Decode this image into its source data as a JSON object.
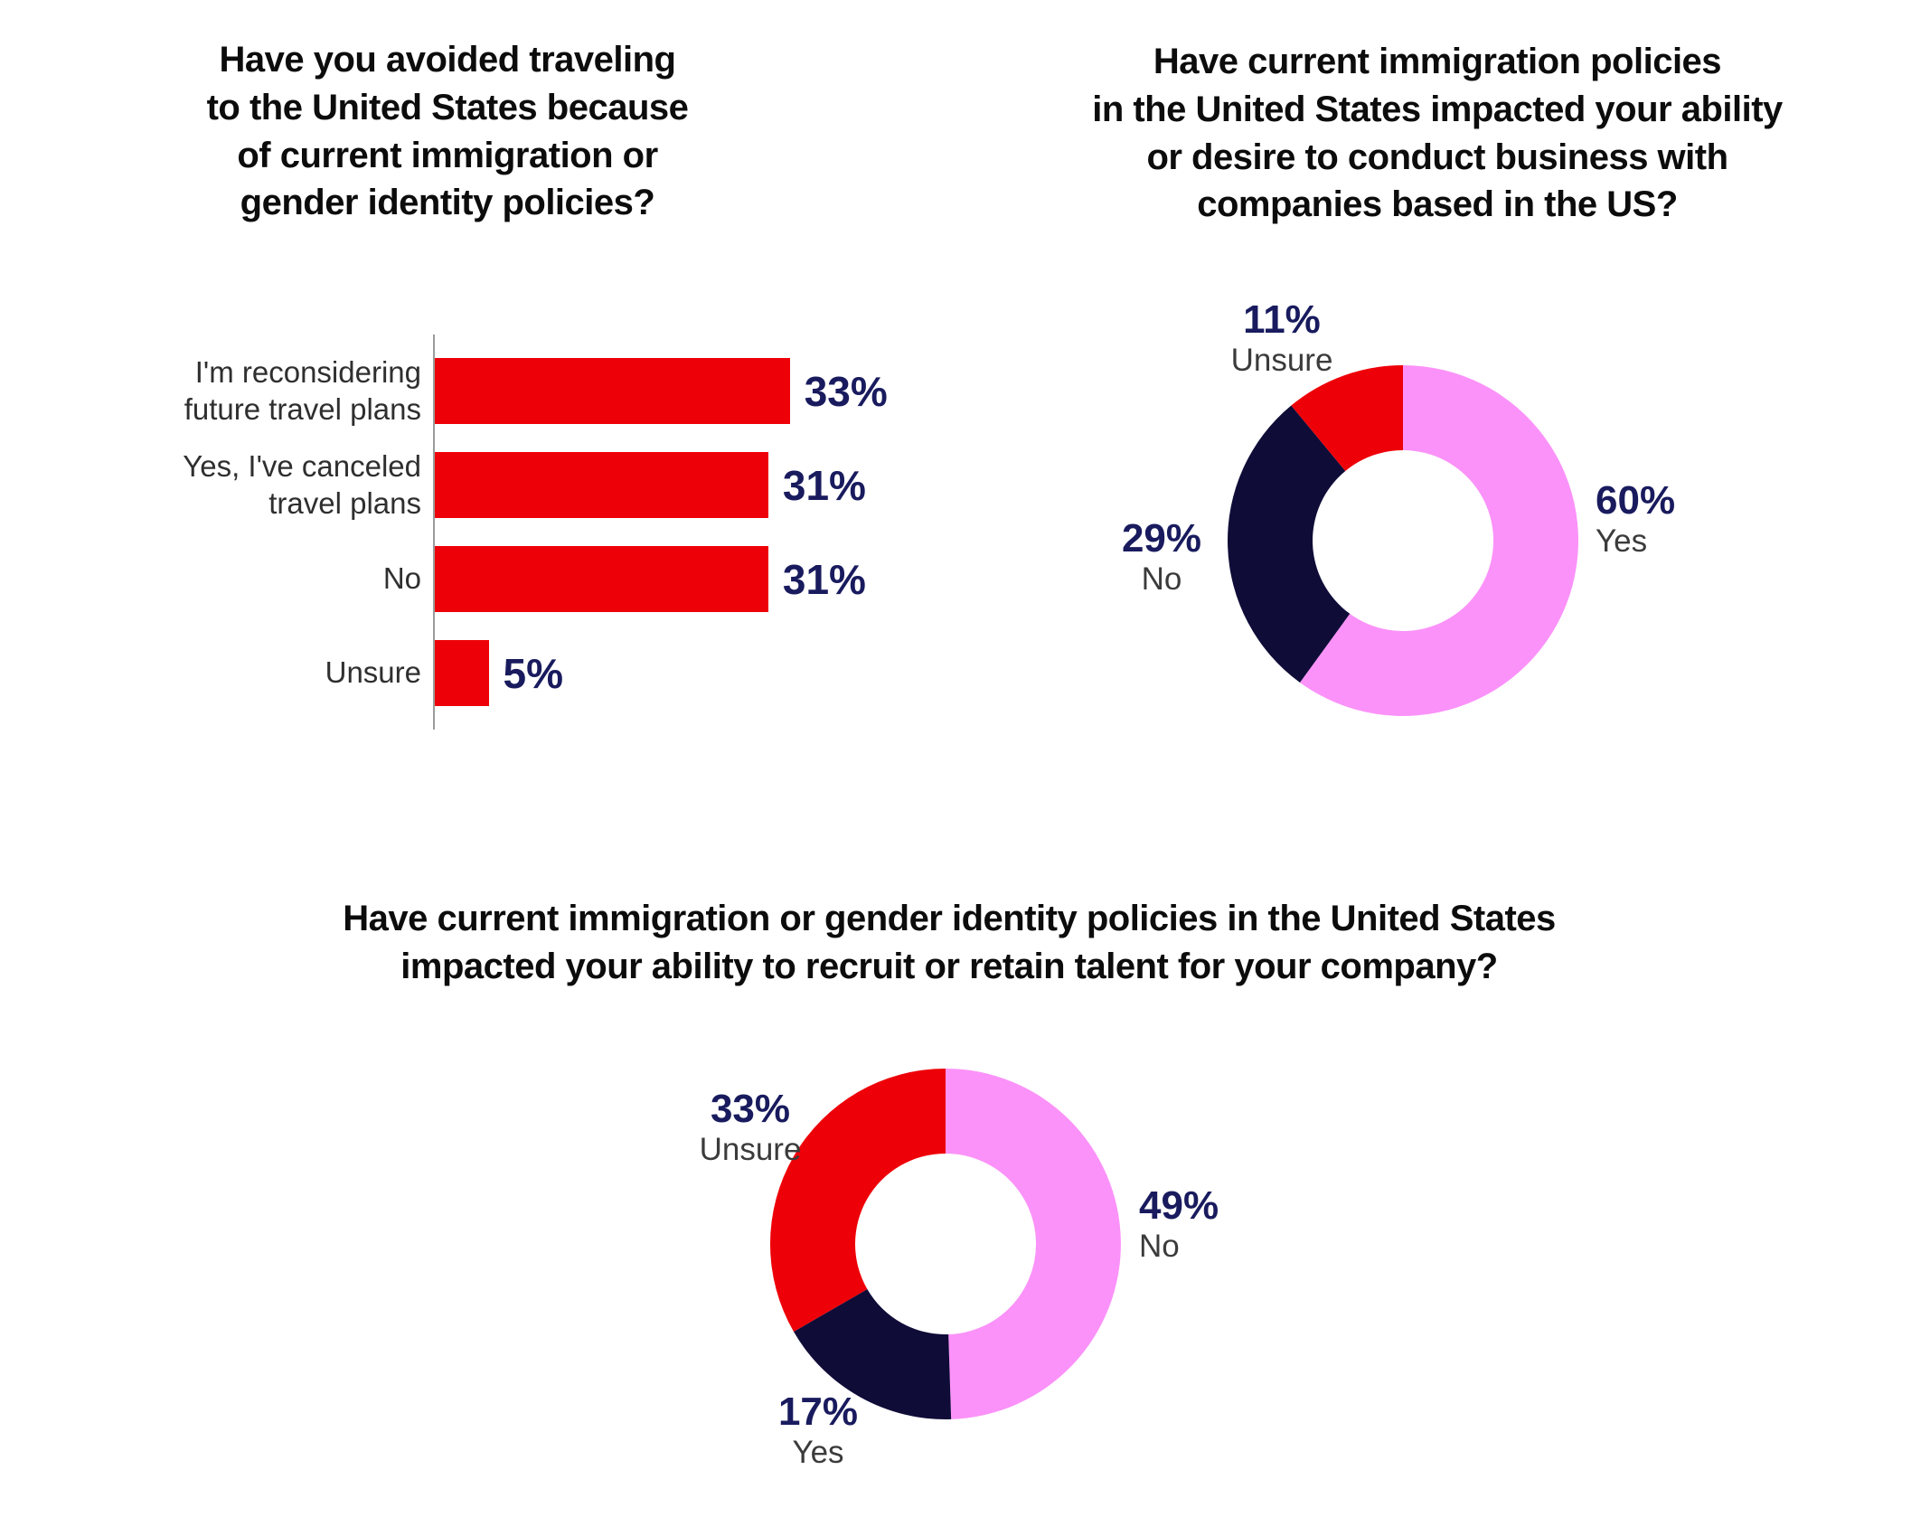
{
  "colors": {
    "red": "#EE0008",
    "pink": "#FB92F9",
    "navy": "#0F0C38",
    "value_text": "#191B5E",
    "label_text": "#2F2F2F",
    "title_text": "#0C0C0C",
    "axis": "#9B9B9B"
  },
  "chart_data": [
    {
      "type": "bar",
      "orientation": "horizontal",
      "title": "Have you avoided traveling\nto the United States because\nof current immigration or\ngender identity policies?",
      "categories": [
        "I'm reconsidering\nfuture travel plans",
        "Yes, I've canceled travel plans",
        "No",
        "Unsure"
      ],
      "values": [
        33,
        31,
        31,
        5
      ],
      "value_labels": [
        "33%",
        "31%",
        "31%",
        "5%"
      ],
      "bar_color": "#EE0008",
      "xlim": [
        0,
        35
      ],
      "grid": false,
      "legend": false
    },
    {
      "type": "pie",
      "subtype": "donut",
      "title": "Have current immigration policies\nin the United States impacted your ability\nor desire to conduct business with\ncompanies based in the US?",
      "start_angle_deg": 0,
      "direction": "clockwise",
      "inner_radius_ratio": 0.515,
      "slices": [
        {
          "label": "Yes",
          "value": 60,
          "pct_label": "60%",
          "color": "#FB92F9"
        },
        {
          "label": "No",
          "value": 29,
          "pct_label": "29%",
          "color": "#0F0C38"
        },
        {
          "label": "Unsure",
          "value": 11,
          "pct_label": "11%",
          "color": "#EE0008"
        }
      ]
    },
    {
      "type": "pie",
      "subtype": "donut",
      "title": "Have current immigration or gender identity policies in the United States\nimpacted your ability to recruit or retain talent for your company?",
      "start_angle_deg": 0,
      "direction": "clockwise",
      "inner_radius_ratio": 0.515,
      "slices": [
        {
          "label": "No",
          "value": 49,
          "pct_label": "49%",
          "color": "#FB92F9"
        },
        {
          "label": "Yes",
          "value": 17,
          "pct_label": "17%",
          "color": "#0F0C38"
        },
        {
          "label": "Unsure",
          "value": 33,
          "pct_label": "33%",
          "color": "#EE0008"
        }
      ]
    }
  ]
}
